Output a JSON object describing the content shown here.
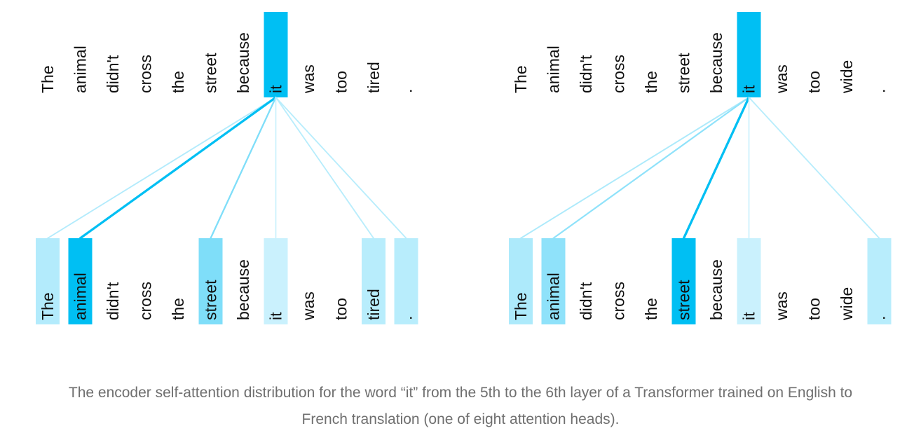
{
  "panels": [
    {
      "query_index": 7,
      "top_tokens": [
        "The",
        "animal",
        "didn't",
        "cross",
        "the",
        "street",
        "because",
        "it",
        "was",
        "too",
        "tired",
        "."
      ],
      "bottom_tokens": [
        "The",
        "animal",
        "didn't",
        "cross",
        "the",
        "street",
        "because",
        "it",
        "was",
        "too",
        "tired",
        "."
      ],
      "attention": [
        0.22,
        1.0,
        0,
        0,
        0,
        0.45,
        0,
        0.12,
        0,
        0,
        0.2,
        0.2
      ]
    },
    {
      "query_index": 7,
      "top_tokens": [
        "The",
        "animal",
        "didn't",
        "cross",
        "the",
        "street",
        "because",
        "it",
        "was",
        "too",
        "wide",
        "."
      ],
      "bottom_tokens": [
        "The",
        "animal",
        "didn't",
        "cross",
        "the",
        "street",
        "because",
        "it",
        "was",
        "too",
        "wide",
        "."
      ],
      "attention": [
        0.25,
        0.38,
        0,
        0,
        0,
        1.0,
        0,
        0.12,
        0,
        0,
        0,
        0.2
      ]
    }
  ],
  "colors": {
    "strong": "#00bff3",
    "weak": "#e6f8fe"
  },
  "caption": {
    "line1": "The encoder self-attention distribution for the word “it” from the 5th to the 6th layer of a Transformer trained on English to",
    "line2": "French translation (one of eight attention heads)."
  }
}
